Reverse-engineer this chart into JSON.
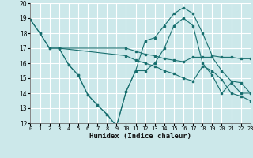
{
  "xlabel": "Humidex (Indice chaleur)",
  "xlim": [
    0,
    23
  ],
  "ylim": [
    12,
    20
  ],
  "yticks": [
    12,
    13,
    14,
    15,
    16,
    17,
    18,
    19,
    20
  ],
  "xticks": [
    0,
    1,
    2,
    3,
    4,
    5,
    6,
    7,
    8,
    9,
    10,
    11,
    12,
    13,
    14,
    15,
    16,
    17,
    18,
    19,
    20,
    21,
    22,
    23
  ],
  "background_color": "#cce8ea",
  "grid_color": "#ffffff",
  "line_color": "#1a7070",
  "lines": [
    {
      "x": [
        0,
        1,
        2,
        3,
        10,
        11,
        12,
        13,
        14,
        15,
        16,
        17,
        18,
        19,
        20,
        21,
        22,
        23
      ],
      "y": [
        18.9,
        18.0,
        17.0,
        17.0,
        17.0,
        16.8,
        16.6,
        16.5,
        16.3,
        16.2,
        16.1,
        16.4,
        16.4,
        16.4,
        15.5,
        14.8,
        14.7,
        14.0
      ]
    },
    {
      "x": [
        0,
        1,
        2,
        3,
        10,
        11,
        12,
        13,
        14,
        15,
        16,
        17,
        18,
        19,
        20,
        21,
        22,
        23
      ],
      "y": [
        18.9,
        18.0,
        17.0,
        17.0,
        16.5,
        16.2,
        16.0,
        15.8,
        15.5,
        15.3,
        15.0,
        14.8,
        15.8,
        15.5,
        14.9,
        14.0,
        13.8,
        13.5
      ]
    },
    {
      "x": [
        3,
        4,
        5,
        6,
        7,
        8,
        9,
        10,
        11,
        12,
        13,
        14,
        15,
        16,
        17,
        18,
        19,
        20,
        21,
        22,
        23
      ],
      "y": [
        17.0,
        15.9,
        15.2,
        13.9,
        13.2,
        12.6,
        11.8,
        14.1,
        15.5,
        17.5,
        17.7,
        18.5,
        19.3,
        19.7,
        19.3,
        18.0,
        16.5,
        16.4,
        16.4,
        16.3,
        16.3
      ]
    },
    {
      "x": [
        3,
        4,
        5,
        6,
        7,
        8,
        9,
        10,
        11,
        12,
        13,
        14,
        15,
        16,
        17,
        18,
        19,
        20,
        21,
        22,
        23
      ],
      "y": [
        17.0,
        15.9,
        15.2,
        13.9,
        13.2,
        12.6,
        11.8,
        14.1,
        15.5,
        15.5,
        16.0,
        17.0,
        18.5,
        19.0,
        18.5,
        16.0,
        15.2,
        14.0,
        14.7,
        14.0,
        14.0
      ]
    }
  ]
}
